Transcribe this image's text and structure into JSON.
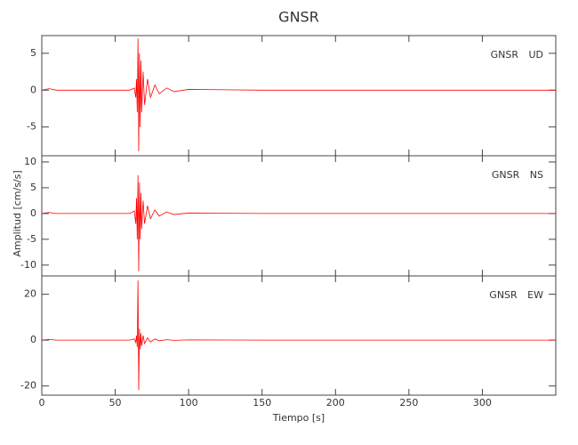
{
  "title": "GNSR",
  "y_label": "Amplitud [cm/s/s]",
  "x_label": "Tiempo [s]",
  "chart_data": [
    {
      "type": "line",
      "label": "GNSR UD",
      "color": "#ff0000",
      "x": [
        0,
        5,
        10,
        60,
        63,
        64,
        64.5,
        65,
        65.5,
        66,
        66.5,
        67,
        67.5,
        68,
        69,
        70,
        72,
        74,
        77,
        80,
        85,
        90,
        100,
        150,
        200,
        250,
        300,
        350
      ],
      "values": [
        0,
        0.2,
        0,
        0,
        0.3,
        -1,
        1.5,
        -3,
        7,
        -8.3,
        5,
        -5,
        4,
        -3,
        2.5,
        -2,
        1.5,
        -1,
        0.7,
        -0.5,
        0.3,
        -0.2,
        0.1,
        0,
        0,
        0,
        0,
        0
      ],
      "xlim": [
        0,
        350
      ],
      "xticks": [
        0,
        50,
        100,
        150,
        200,
        250,
        300
      ],
      "ylim": [
        -8.9,
        7.4
      ],
      "yticks": [
        5,
        0,
        -5
      ]
    },
    {
      "type": "line",
      "label": "GNSR NS",
      "color": "#ff0000",
      "x": [
        0,
        5,
        10,
        60,
        63,
        64,
        64.5,
        65,
        65.5,
        66,
        66.5,
        67,
        67.5,
        68,
        69,
        70,
        72,
        74,
        77,
        80,
        85,
        90,
        100,
        150,
        200,
        250,
        300,
        350
      ],
      "values": [
        0,
        0.2,
        0,
        0,
        0.5,
        -2,
        3,
        -5,
        7.4,
        -11.2,
        6,
        -5,
        4,
        -3,
        2.5,
        -2,
        1.5,
        -1,
        0.7,
        -0.5,
        0.3,
        -0.2,
        0.1,
        0,
        0,
        0,
        0,
        0
      ],
      "xlim": [
        0,
        350
      ],
      "xticks": [
        0,
        50,
        100,
        150,
        200,
        250,
        300
      ],
      "ylim": [
        -12.1,
        11.2
      ],
      "yticks": [
        10,
        5,
        0,
        -5,
        -10
      ]
    },
    {
      "type": "line",
      "label": "GNSR EW",
      "color": "#ff0000",
      "x": [
        0,
        5,
        10,
        60,
        63,
        64,
        64.5,
        65,
        65.5,
        66,
        66.5,
        67,
        67.5,
        68,
        69,
        70,
        72,
        74,
        77,
        80,
        85,
        90,
        100,
        150,
        200,
        250,
        300,
        350
      ],
      "values": [
        0,
        0.3,
        0,
        0,
        0.5,
        -1,
        2,
        -3,
        26,
        -21.8,
        5,
        -4,
        3,
        -2.5,
        2,
        -1.5,
        1,
        -0.8,
        0.5,
        -0.3,
        0.2,
        -0.1,
        0.1,
        0,
        0,
        0,
        0,
        0
      ],
      "xlim": [
        0,
        350
      ],
      "xticks": [
        0,
        50,
        100,
        150,
        200,
        250,
        300
      ],
      "ylim": [
        -24,
        28
      ],
      "yticks": [
        20,
        0,
        -20
      ]
    }
  ]
}
